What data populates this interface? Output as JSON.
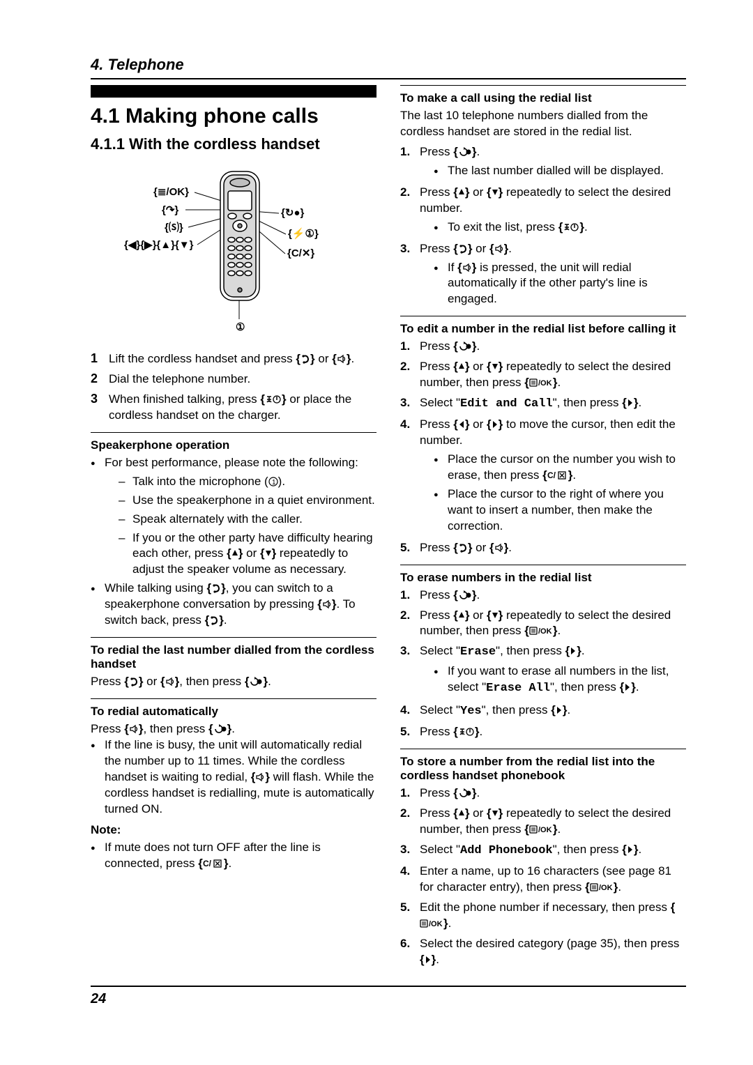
{
  "icons": {
    "menu_ok": "≣/OK",
    "talk": "↷",
    "speaker": "⒮",
    "redial": "↻●",
    "off": "⚡①",
    "clear": "C/✕",
    "left": "◀",
    "right": "▶",
    "up": "▲",
    "down": "▼"
  },
  "chapter": "4. Telephone",
  "section_number_title": "4.1 Making phone calls",
  "subsection_title": "4.1.1 With the cordless handset",
  "handset_labels": {
    "menu_ok": "{≣/OK}",
    "talk": "{↷}",
    "speaker": "{⒮}",
    "nav": "{◀}{▶}{▲}{▼}",
    "redial": "{↻●}",
    "off": "{⚡①}",
    "clear": "{C/✕}",
    "mic": "①"
  },
  "main_steps": [
    "Lift the cordless handset and press {↷} or {⒮}.",
    "Dial the telephone number.",
    "When finished talking, press {⚡①} or place the cordless handset on the charger."
  ],
  "speakerphone": {
    "heading": "Speakerphone operation",
    "intro": "For best performance, please note the following:",
    "dash": [
      "Talk into the microphone (①).",
      "Use the speakerphone in a quiet environment.",
      "Speak alternately with the caller.",
      "If you or the other party have difficulty hearing each other, press {▲} or {▼} repeatedly to adjust the speaker volume as necessary."
    ],
    "switch_note": "While talking using {↷}, you can switch to a speakerphone conversation by pressing {⒮}. To switch back, press {↷}."
  },
  "redial_last": {
    "heading": "To redial the last number dialled from the cordless handset",
    "body": "Press {↷} or {⒮}, then press {↻●}."
  },
  "redial_auto": {
    "heading": "To redial automatically",
    "body": "Press {⒮}, then press {↻●}.",
    "bullet": "If the line is busy, the unit will automatically redial the number up to 11 times. While the cordless handset is waiting to redial, {⒮} will flash. While the cordless handset is redialling, mute is automatically turned ON.",
    "note_label": "Note:",
    "note_bullet": "If mute does not turn OFF after the line is connected, press {C/✕}."
  },
  "redial_list_call": {
    "heading": "To make a call using the redial list",
    "intro": "The last 10 telephone numbers dialled from the cordless handset are stored in the redial list.",
    "steps": [
      {
        "t": "Press {↻●}.",
        "sub": [
          "The last number dialled will be displayed."
        ]
      },
      {
        "t": "Press {▲} or {▼} repeatedly to select the desired number.",
        "sub": [
          "To exit the list, press {⚡①}."
        ]
      },
      {
        "t": "Press {↷} or {⒮}.",
        "sub": [
          "If {⒮} is pressed, the unit will redial automatically if the other party's line is engaged."
        ]
      }
    ]
  },
  "redial_edit": {
    "heading": "To edit a number in the redial list before calling it",
    "steps": [
      {
        "t": "Press {↻●}."
      },
      {
        "t": "Press {▲} or {▼} repeatedly to select the desired number, then press {≣/OK}."
      },
      {
        "t": "Select \"<mono>Edit and Call</mono>\", then press {▶}."
      },
      {
        "t": "Press {◀} or {▶} to move the cursor, then edit the number.",
        "sub": [
          "Place the cursor on the number you wish to erase, then press {C/✕}.",
          "Place the cursor to the right of where you want to insert a number, then make the correction."
        ]
      },
      {
        "t": "Press {↷} or {⒮}."
      }
    ]
  },
  "redial_erase": {
    "heading": "To erase numbers in the redial list",
    "steps": [
      {
        "t": "Press {↻●}."
      },
      {
        "t": "Press {▲} or {▼} repeatedly to select the desired number, then press {≣/OK}."
      },
      {
        "t": "Select \"<mono>Erase</mono>\", then press {▶}.",
        "sub": [
          "If you want to erase all numbers in the list, select \"<mono>Erase All</mono>\", then press {▶}."
        ]
      },
      {
        "t": "Select \"<mono>Yes</mono>\", then press {▶}."
      },
      {
        "t": "Press {⚡①}."
      }
    ]
  },
  "redial_store": {
    "heading": "To store a number from the redial list into the cordless handset phonebook",
    "steps": [
      {
        "t": "Press {↻●}."
      },
      {
        "t": "Press {▲} or {▼} repeatedly to select the desired number, then press {≣/OK}."
      },
      {
        "t": "Select \"<mono>Add Phonebook</mono>\", then press {▶}."
      },
      {
        "t": "Enter a name, up to 16 characters (see page 81 for character entry), then press {≣/OK}."
      },
      {
        "t": "Edit the phone number if necessary, then press {≣/OK}."
      },
      {
        "t": "Select the desired category (page 35), then press {▶}."
      }
    ]
  },
  "page_number": "24"
}
